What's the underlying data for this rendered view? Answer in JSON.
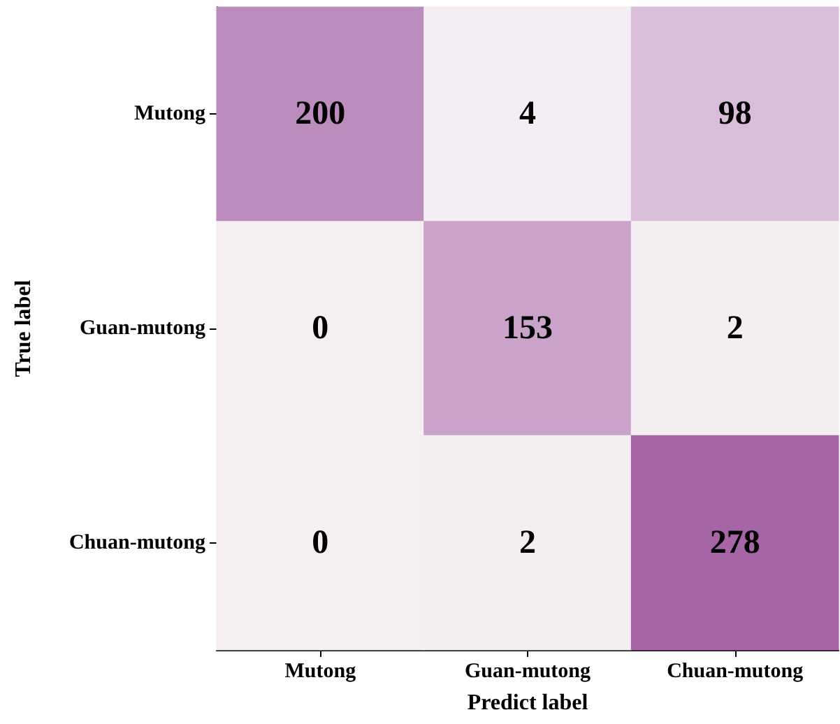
{
  "chart_data": {
    "type": "heatmap",
    "xlabel": "Predict label",
    "ylabel": "True label",
    "categories": [
      "Mutong",
      "Guan-mutong",
      "Chuan-mutong"
    ],
    "y_categories": [
      "Mutong",
      "Guan-mutong",
      "Chuan-mutong"
    ],
    "cells": [
      [
        200,
        4,
        98
      ],
      [
        0,
        153,
        2
      ],
      [
        0,
        2,
        278
      ]
    ],
    "data_labels": true
  }
}
